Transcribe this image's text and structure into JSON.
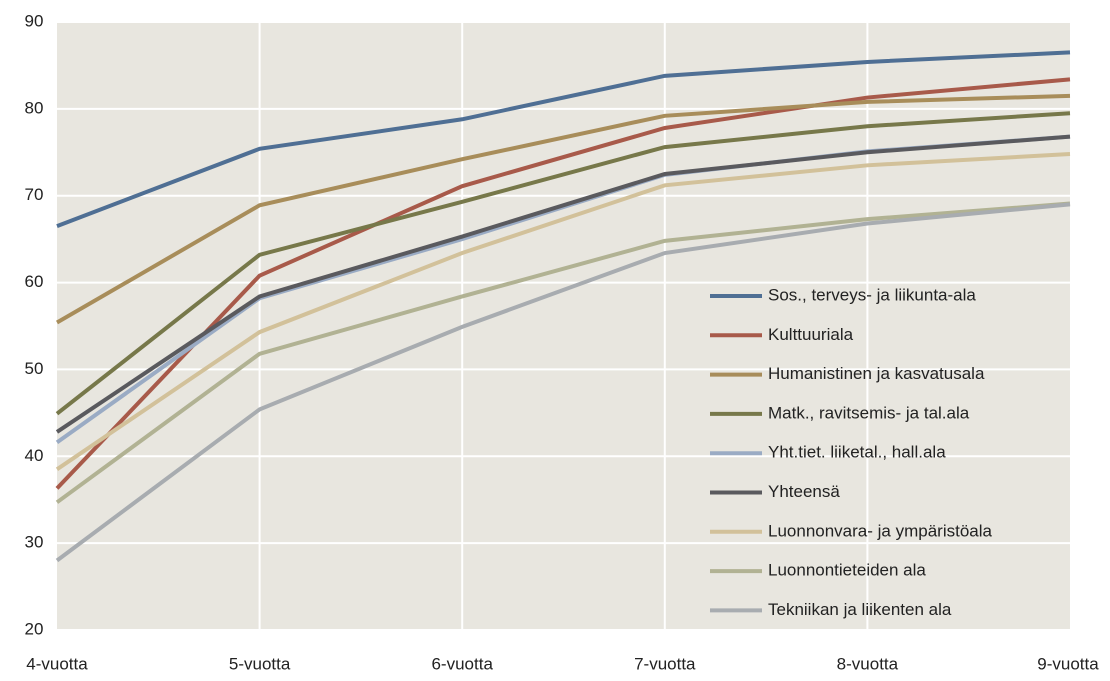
{
  "chart_data": {
    "type": "line",
    "categories": [
      "4-vuotta",
      "5-vuotta",
      "6-vuotta",
      "7-vuotta",
      "8-vuotta",
      "9-vuotta"
    ],
    "series": [
      {
        "name": "Sos., terveys- ja liikunta-ala",
        "color": "#4f6f94",
        "values": [
          66.5,
          75.4,
          78.8,
          83.8,
          85.4,
          86.5
        ]
      },
      {
        "name": "Kulttuuriala",
        "color": "#a85a4a",
        "values": [
          36.3,
          60.8,
          71.1,
          77.8,
          81.3,
          83.4
        ]
      },
      {
        "name": "Humanistinen ja kasvatusala",
        "color": "#a88d5a",
        "values": [
          55.4,
          68.9,
          74.2,
          79.2,
          80.8,
          81.5
        ]
      },
      {
        "name": "Matk., ravitsemis- ja tal.ala",
        "color": "#77784a",
        "values": [
          44.9,
          63.2,
          69.3,
          75.6,
          78.0,
          79.5
        ]
      },
      {
        "name": "Yht.tiet. liiketal., hall.ala",
        "color": "#9aabc4",
        "values": [
          41.6,
          58.2,
          65.0,
          72.4,
          75.1,
          76.8
        ]
      },
      {
        "name": "Yhteensä",
        "color": "#5a5a5e",
        "values": [
          42.8,
          58.4,
          65.3,
          72.5,
          75.0,
          76.8
        ]
      },
      {
        "name": "Luonnonvara- ja ympäristöala",
        "color": "#d2c19a",
        "values": [
          38.5,
          54.3,
          63.4,
          71.2,
          73.5,
          74.8
        ]
      },
      {
        "name": "Luonnontieteiden ala",
        "color": "#b1b293",
        "values": [
          34.7,
          51.8,
          58.4,
          64.8,
          67.3,
          69.1
        ]
      },
      {
        "name": "Tekniikan ja liikenten ala",
        "color": "#a8acb0",
        "values": [
          28.0,
          45.4,
          54.9,
          63.4,
          66.8,
          69.0
        ]
      }
    ],
    "ylim": [
      20,
      90
    ],
    "yticks": [
      20,
      30,
      40,
      50,
      60,
      70,
      80,
      90
    ],
    "grid": true,
    "legend": "lower right"
  }
}
